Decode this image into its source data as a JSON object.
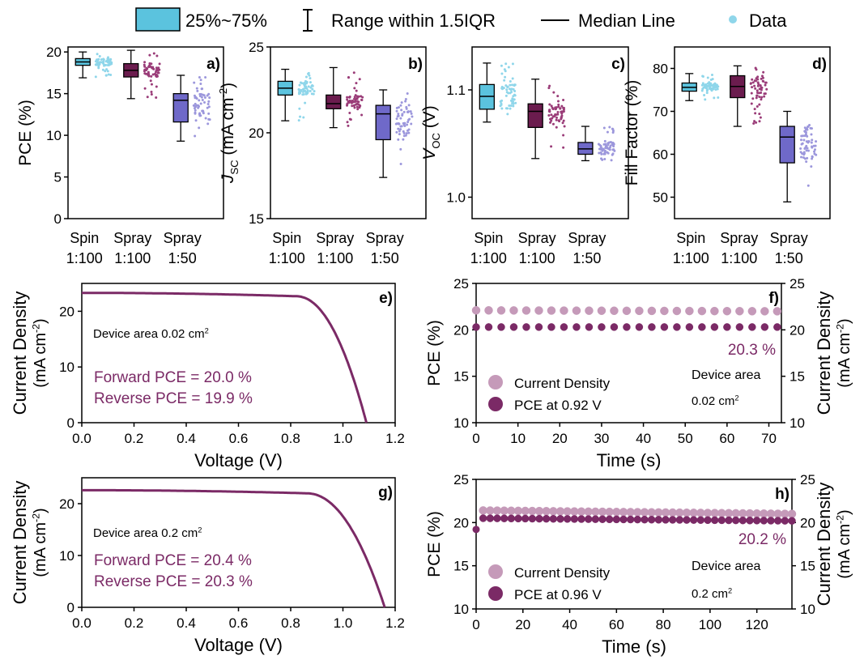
{
  "legend": {
    "box_label": "25%~75%",
    "range_label": "Range within 1.5IQR",
    "median_label": "Median Line",
    "data_label": "Data"
  },
  "colors": {
    "spin": "#5bc3de",
    "spin_dots": "#8fd6ea",
    "spray100": "#6b1c4e",
    "spray100_dots": "#9a3c78",
    "spray50": "#6f69c9",
    "spray50_dots": "#9c97dc",
    "curve": "#7b2a66",
    "light_marker": "#c59ab9",
    "dark_marker": "#7b2a66",
    "annot_text": "#7b2a66"
  },
  "chart_data": [
    {
      "id": "a",
      "type": "box",
      "panel_label": "a)",
      "ylabel": "PCE (%)",
      "ylim": [
        0,
        20.6
      ],
      "yticks": [
        0,
        5,
        10,
        15,
        20
      ],
      "categories": [
        [
          "Spin",
          "1:100"
        ],
        [
          "Spray",
          "1:100"
        ],
        [
          "Spray",
          "1:50"
        ]
      ],
      "boxes": [
        {
          "min": 16.9,
          "q1": 18.4,
          "median": 18.8,
          "q3": 19.2,
          "max": 20.0
        },
        {
          "min": 14.4,
          "q1": 17.0,
          "median": 17.8,
          "q3": 18.6,
          "max": 20.2
        },
        {
          "min": 9.3,
          "q1": 11.6,
          "median": 14.2,
          "q3": 15.0,
          "max": 17.2
        }
      ]
    },
    {
      "id": "b",
      "type": "box",
      "panel_label": "b)",
      "ylabel": "J_SC (mA cm^-2)",
      "ylim": [
        15,
        25
      ],
      "yticks": [
        15,
        20,
        25
      ],
      "categories": [
        [
          "Spin",
          "1:100"
        ],
        [
          "Spray",
          "1:100"
        ],
        [
          "Spray",
          "1:50"
        ]
      ],
      "boxes": [
        {
          "min": 20.7,
          "q1": 22.2,
          "median": 22.6,
          "q3": 23.0,
          "max": 23.7
        },
        {
          "min": 20.3,
          "q1": 21.4,
          "median": 21.7,
          "q3": 22.2,
          "max": 23.8
        },
        {
          "min": 17.4,
          "q1": 19.6,
          "median": 21.1,
          "q3": 21.6,
          "max": 22.5
        }
      ]
    },
    {
      "id": "c",
      "type": "box",
      "panel_label": "c)",
      "ylabel": "V_OC (V)",
      "ylim": [
        0.98,
        1.14
      ],
      "yticks": [
        1.0,
        1.1
      ],
      "categories": [
        [
          "Spin",
          "1:100"
        ],
        [
          "Spray",
          "1:100"
        ],
        [
          "Spray",
          "1:50"
        ]
      ],
      "boxes": [
        {
          "min": 1.07,
          "q1": 1.082,
          "median": 1.094,
          "q3": 1.105,
          "max": 1.125
        },
        {
          "min": 1.036,
          "q1": 1.065,
          "median": 1.08,
          "q3": 1.087,
          "max": 1.11
        },
        {
          "min": 1.034,
          "q1": 1.04,
          "median": 1.045,
          "q3": 1.051,
          "max": 1.066
        }
      ]
    },
    {
      "id": "d",
      "type": "box",
      "panel_label": "d)",
      "ylabel": "Fill Factor (%)",
      "ylim": [
        45,
        85
      ],
      "yticks": [
        50,
        60,
        70,
        80
      ],
      "categories": [
        [
          "Spin",
          "1:100"
        ],
        [
          "Spray",
          "1:100"
        ],
        [
          "Spray",
          "1:50"
        ]
      ],
      "boxes": [
        {
          "min": 72.5,
          "q1": 74.7,
          "median": 75.6,
          "q3": 76.6,
          "max": 78.8
        },
        {
          "min": 66.5,
          "q1": 73.2,
          "median": 75.8,
          "q3": 78.3,
          "max": 80.6
        },
        {
          "min": 48.9,
          "q1": 58.0,
          "median": 64.0,
          "q3": 66.5,
          "max": 70.0
        }
      ]
    },
    {
      "id": "e",
      "type": "line",
      "panel_label": "e)",
      "xlabel": "Voltage (V)",
      "ylabel": [
        "Current Density",
        "(mA cm^-2)"
      ],
      "xlim": [
        0,
        1.2
      ],
      "ylim": [
        0,
        25
      ],
      "xticks": [
        "0.0",
        "0.2",
        "0.4",
        "0.6",
        "0.8",
        "1.0",
        "1.2"
      ],
      "yticks": [
        0,
        10,
        20
      ],
      "jsc": 23.3,
      "voc": 1.09,
      "knee": 0.82,
      "area_text": "Device area 0.02 cm^2",
      "annotations": [
        "Forward PCE = 20.0 %",
        "Reverse PCE = 19.9 %"
      ]
    },
    {
      "id": "f",
      "type": "scatter",
      "panel_label": "f)",
      "xlabel": "Time (s)",
      "ylabel": "PCE (%)",
      "ylabel_right": [
        "Current Density",
        "(mA cm^-2)"
      ],
      "xlim": [
        0,
        73
      ],
      "ylim": [
        10,
        25
      ],
      "xticks": [
        0,
        10,
        20,
        30,
        40,
        50,
        60,
        70
      ],
      "yticks": [
        10,
        15,
        20,
        25
      ],
      "series": [
        {
          "name": "Current Density",
          "x_start": 0,
          "x_end": 71,
          "x_step": 3,
          "y": 22.1,
          "y_end": 22.0
        },
        {
          "name": "PCE at 0.92 V",
          "x_start": 0,
          "x_end": 71,
          "x_step": 3,
          "y": 20.3,
          "y_end": 20.3
        }
      ],
      "value_text": "20.3 %",
      "area_text": [
        "Device area",
        "0.02 cm^2"
      ]
    },
    {
      "id": "g",
      "type": "line",
      "panel_label": "g)",
      "xlabel": "Voltage (V)",
      "ylabel": [
        "Current Density",
        "(mA cm^-2)"
      ],
      "xlim": [
        0,
        1.2
      ],
      "ylim": [
        0,
        25
      ],
      "xticks": [
        "0.0",
        "0.2",
        "0.4",
        "0.6",
        "0.8",
        "1.0",
        "1.2"
      ],
      "yticks": [
        0,
        10,
        20
      ],
      "jsc": 22.6,
      "voc": 1.16,
      "knee": 0.86,
      "area_text": "Device area 0.2 cm^2",
      "annotations": [
        "Forward PCE = 20.4 %",
        "Reverse PCE = 20.3 %"
      ]
    },
    {
      "id": "h",
      "type": "scatter",
      "panel_label": "h)",
      "xlabel": "Time (s)",
      "ylabel": "PCE (%)",
      "ylabel_right": [
        "Current Density",
        "(mA cm^-2)"
      ],
      "xlim": [
        0,
        135
      ],
      "ylim": [
        10,
        25
      ],
      "xticks": [
        0,
        20,
        40,
        60,
        80,
        100,
        120
      ],
      "yticks": [
        10,
        15,
        20,
        25
      ],
      "series": [
        {
          "name": "Current Density",
          "x_start": 3,
          "x_end": 135,
          "x_step": 3,
          "y": 21.4,
          "y_end": 21.0
        },
        {
          "name": "PCE at 0.96 V",
          "x_start": 3,
          "x_end": 135,
          "x_step": 3,
          "y": 20.5,
          "y_end": 20.2
        }
      ],
      "first_point": {
        "x": 0,
        "y": 19.2
      },
      "value_text": "20.2 %",
      "area_text": [
        "Device area",
        "0.2 cm^2"
      ]
    }
  ]
}
